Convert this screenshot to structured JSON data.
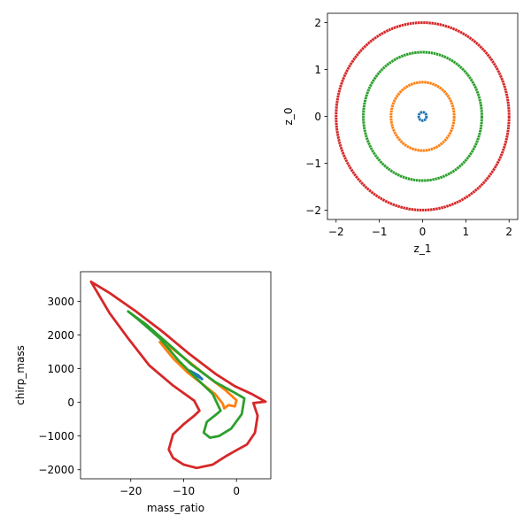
{
  "chart_data": [
    {
      "type": "scatter",
      "panel": "top-right",
      "title": "",
      "xlabel": "z_1",
      "ylabel": "z_0",
      "xlim": [
        -2.2,
        2.2
      ],
      "ylim": [
        -2.2,
        2.2
      ],
      "xticks": [
        -2,
        -1,
        0,
        1,
        2
      ],
      "yticks": [
        -2,
        -1,
        0,
        1,
        2
      ],
      "xtick_labels": [
        "−2",
        "−1",
        "0",
        "1",
        "2"
      ],
      "ytick_labels": [
        "−2",
        "−1",
        "0",
        "1",
        "2"
      ],
      "grid": false,
      "series": [
        {
          "color": "#1f77b4",
          "shape": "circle",
          "center": [
            0,
            0
          ],
          "radius": 0.09
        },
        {
          "color": "#ff7f0e",
          "shape": "circle",
          "center": [
            0,
            0
          ],
          "radius": 0.73
        },
        {
          "color": "#2ca02c",
          "shape": "circle",
          "center": [
            0,
            0
          ],
          "radius": 1.37
        },
        {
          "color": "#d62728",
          "shape": "circle",
          "center": [
            0,
            0
          ],
          "radius": 2.0
        }
      ]
    },
    {
      "type": "scatter",
      "panel": "bottom-left",
      "title": "",
      "xlabel": "mass_ratio",
      "ylabel": "chirp_mass",
      "xlim": [
        -29.5,
        6.5
      ],
      "ylim": [
        -2270,
        3880
      ],
      "xticks": [
        -20,
        -10,
        0
      ],
      "yticks": [
        -2000,
        -1000,
        0,
        1000,
        2000,
        3000
      ],
      "xtick_labels": [
        "−20",
        "−10",
        "0"
      ],
      "ytick_labels": [
        "−2000",
        "−1000",
        "0",
        "1000",
        "2000",
        "3000"
      ],
      "grid": false,
      "series": [
        {
          "color": "#1f77b4",
          "shape": "polyline",
          "points": [
            [
              -8.8,
              940
            ],
            [
              -7.2,
              800
            ],
            [
              -6.5,
              690
            ],
            [
              -7.0,
              740
            ],
            [
              -8.1,
              850
            ],
            [
              -8.8,
              940
            ]
          ]
        },
        {
          "color": "#ff7f0e",
          "shape": "polyline",
          "points": [
            [
              -14.5,
              1790
            ],
            [
              -12.0,
              1580
            ],
            [
              -9.0,
              1210
            ],
            [
              -5.0,
              710
            ],
            [
              -2.0,
              350
            ],
            [
              0.0,
              60
            ],
            [
              -0.3,
              -120
            ],
            [
              -1.5,
              -80
            ],
            [
              -2.3,
              -180
            ],
            [
              -2.6,
              -40
            ],
            [
              -4.0,
              240
            ],
            [
              -6.5,
              550
            ],
            [
              -9.2,
              880
            ],
            [
              -12.0,
              1310
            ],
            [
              -14.5,
              1790
            ]
          ]
        },
        {
          "color": "#2ca02c",
          "shape": "polyline",
          "points": [
            [
              -20.5,
              2700
            ],
            [
              -17.0,
              2300
            ],
            [
              -13.0,
              1750
            ],
            [
              -8.5,
              1120
            ],
            [
              -4.0,
              600
            ],
            [
              -0.5,
              300
            ],
            [
              1.5,
              120
            ],
            [
              1.0,
              -350
            ],
            [
              -1.0,
              -780
            ],
            [
              -3.3,
              -1000
            ],
            [
              -5.0,
              -1050
            ],
            [
              -6.2,
              -900
            ],
            [
              -5.6,
              -580
            ],
            [
              -4.0,
              -380
            ],
            [
              -3.0,
              -250
            ],
            [
              -4.5,
              250
            ],
            [
              -7.5,
              700
            ],
            [
              -11.0,
              1250
            ],
            [
              -14.5,
              1900
            ],
            [
              -18.5,
              2450
            ],
            [
              -20.5,
              2700
            ]
          ]
        },
        {
          "color": "#d62728",
          "shape": "polyline",
          "points": [
            [
              -27.5,
              3580
            ],
            [
              -24.0,
              3250
            ],
            [
              -19.0,
              2700
            ],
            [
              -14.0,
              2100
            ],
            [
              -9.0,
              1450
            ],
            [
              -4.0,
              850
            ],
            [
              -0.3,
              480
            ],
            [
              3.0,
              240
            ],
            [
              5.5,
              20
            ],
            [
              3.2,
              -20
            ],
            [
              4.0,
              -400
            ],
            [
              3.5,
              -900
            ],
            [
              2.0,
              -1250
            ],
            [
              0.0,
              -1420
            ],
            [
              -2.0,
              -1600
            ],
            [
              -4.5,
              -1850
            ],
            [
              -7.5,
              -1950
            ],
            [
              -10.0,
              -1850
            ],
            [
              -12.0,
              -1650
            ],
            [
              -12.8,
              -1400
            ],
            [
              -12.0,
              -950
            ],
            [
              -10.0,
              -650
            ],
            [
              -8.0,
              -400
            ],
            [
              -7.0,
              -250
            ],
            [
              -8.0,
              50
            ],
            [
              -12.0,
              500
            ],
            [
              -16.5,
              1100
            ],
            [
              -20.5,
              1900
            ],
            [
              -24.0,
              2650
            ],
            [
              -27.5,
              3580
            ]
          ]
        }
      ]
    }
  ]
}
